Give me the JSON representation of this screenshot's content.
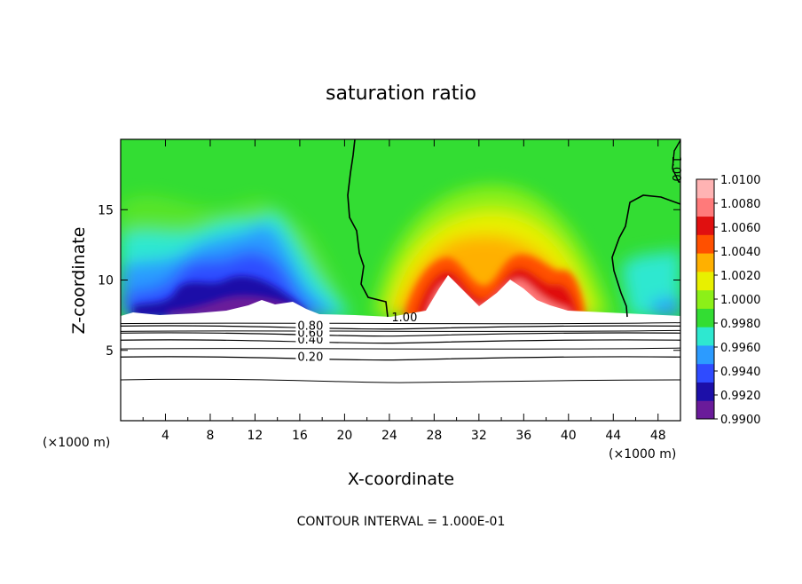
{
  "chart_data": {
    "type": "heatmap",
    "title": "saturation ratio",
    "xlabel": "X-coordinate",
    "ylabel": "Z-coordinate",
    "x_unit": "(×1000 m)",
    "y_unit": "(×1000 m)",
    "note": "CONTOUR INTERVAL = 1.000E-01",
    "xlim": [
      0,
      50
    ],
    "ylim": [
      0,
      20
    ],
    "x_ticks": [
      "4",
      "8",
      "12",
      "16",
      "20",
      "24",
      "28",
      "32",
      "36",
      "40",
      "44",
      "48"
    ],
    "x_tick_values": [
      4,
      8,
      12,
      16,
      20,
      24,
      28,
      32,
      36,
      40,
      44,
      48
    ],
    "y_ticks": [
      "5",
      "10",
      "15"
    ],
    "y_tick_values": [
      5,
      10,
      15
    ],
    "colorbar": {
      "range": [
        0.99,
        1.01
      ],
      "labels": [
        "1.0100",
        "1.0080",
        "1.0060",
        "1.0040",
        "1.0020",
        "1.0000",
        "0.9980",
        "0.9960",
        "0.9940",
        "0.9920",
        "0.9900"
      ],
      "colors": [
        "#6a1b9a",
        "#1c0fa8",
        "#2f4bff",
        "#2c9bff",
        "#2ee8d0",
        "#33dd33",
        "#8cf018",
        "#e8f000",
        "#ffb000",
        "#ff5000",
        "#e01010",
        "#ff7a7a",
        "#ffb3b3"
      ]
    },
    "contours": [
      {
        "level": 0.2,
        "label": "0.20",
        "z": 4.4,
        "label_x": 15.8
      },
      {
        "level": 0.4,
        "label": "0.40",
        "z": 5.6,
        "label_x": 15.8
      },
      {
        "level": 0.6,
        "label": "0.60",
        "z": 6.1,
        "label_x": 15.8
      },
      {
        "level": 0.8,
        "label": "0.80",
        "z": 6.6,
        "label_x": 15.8
      },
      {
        "level": 1.0,
        "label": "1.00",
        "z": 7.2,
        "label_x": 24.2
      }
    ],
    "rotated_label": "1.00"
  }
}
